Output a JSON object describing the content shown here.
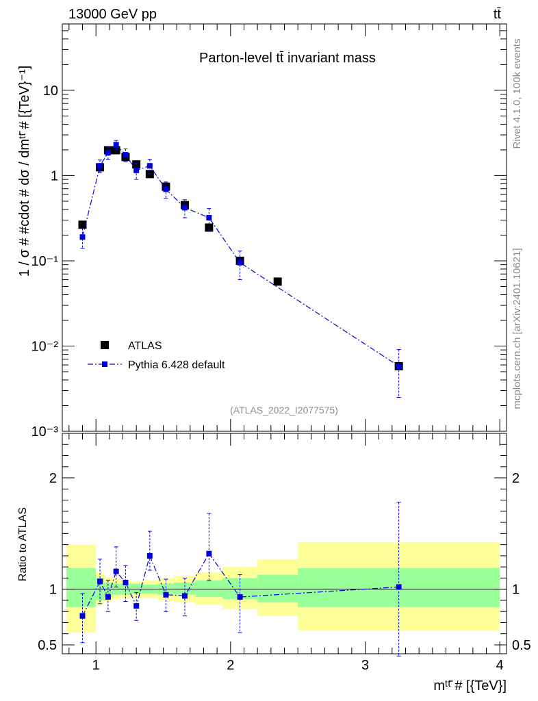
{
  "header": {
    "energy_label": "13000 GeV pp",
    "process_label": "tt̄",
    "side_label_top": "Rivet 4.1.0,  100k events",
    "side_label_bottom": "mcplots.cern.ch [arXiv:2401.10621]"
  },
  "colors": {
    "data": "#000000",
    "mc": "#0000dd",
    "band_inner": "#99ff99",
    "band_outer": "#ffff99",
    "reference_line": "#000000"
  },
  "chart_data": [
    {
      "type": "scatter",
      "title": "Parton-level tt̄ invariant mass",
      "ylabel": "1 / σ # #cdot # dσ / dmᵗᵗ̄ # [{TeV}⁻¹]",
      "xlabel": "",
      "yscale": "log",
      "ylim": [
        0.001,
        60
      ],
      "xlim": [
        0.75,
        4.05
      ],
      "yticks": [
        {
          "value": 0.001,
          "label": "10⁻³"
        },
        {
          "value": 0.01,
          "label": "10⁻²"
        },
        {
          "value": 0.1,
          "label": "10⁻¹"
        },
        {
          "value": 1,
          "label": "1"
        },
        {
          "value": 10,
          "label": "10"
        }
      ],
      "legend": {
        "position": "bottom-left",
        "entries": [
          "ATLAS",
          "Pythia 6.428 default"
        ]
      },
      "annotation": "(ATLAS_2022_I2077575)",
      "series": [
        {
          "name": "ATLAS",
          "marker": "square",
          "x": [
            0.9,
            1.03,
            1.09,
            1.15,
            1.22,
            1.3,
            1.4,
            1.52,
            1.66,
            1.84,
            2.07,
            2.35,
            3.25
          ],
          "y": [
            0.265,
            1.25,
            1.98,
            1.98,
            1.65,
            1.35,
            1.04,
            0.74,
            0.45,
            0.245,
            0.1,
            0.057,
            0.0058
          ]
        },
        {
          "name": "Pythia 6.428 default",
          "marker": "square-line",
          "x": [
            0.9,
            1.03,
            1.09,
            1.15,
            1.22,
            1.3,
            1.4,
            1.52,
            1.66,
            1.84,
            2.07,
            3.25
          ],
          "y": [
            0.19,
            1.3,
            1.85,
            2.3,
            1.75,
            1.15,
            1.3,
            0.69,
            0.42,
            0.32,
            0.095,
            0.0058
          ],
          "yerr_low": [
            0.05,
            0.22,
            0.3,
            0.28,
            0.3,
            0.25,
            0.25,
            0.15,
            0.1,
            0.09,
            0.035,
            0.0033
          ],
          "yerr_high": [
            0.05,
            0.22,
            0.3,
            0.28,
            0.3,
            0.25,
            0.25,
            0.15,
            0.1,
            0.09,
            0.035,
            0.0033
          ]
        }
      ]
    },
    {
      "type": "scatter",
      "title": "",
      "ylabel": "Ratio to ATLAS",
      "xlabel": "mᵗᵗ̄ # [{TeV}]",
      "ylim": [
        0.42,
        2.4
      ],
      "xlim": [
        0.75,
        4.05
      ],
      "yticks": [
        {
          "value": 0.5,
          "label": "0.5"
        },
        {
          "value": 1,
          "label": "1"
        },
        {
          "value": 2,
          "label": "2"
        }
      ],
      "xticks": [
        {
          "value": 1,
          "label": "1"
        },
        {
          "value": 2,
          "label": "2"
        },
        {
          "value": 3,
          "label": "3"
        },
        {
          "value": 4,
          "label": "4"
        }
      ],
      "bands": [
        {
          "x0": 0.78,
          "x1": 1.0,
          "inner": [
            0.84,
            1.19
          ],
          "outer": [
            0.61,
            1.4
          ]
        },
        {
          "x0": 1.0,
          "x1": 1.06,
          "inner": [
            0.9,
            1.1
          ],
          "outer": [
            0.86,
            1.15
          ]
        },
        {
          "x0": 1.06,
          "x1": 1.12,
          "inner": [
            0.93,
            1.06
          ],
          "outer": [
            0.89,
            1.11
          ]
        },
        {
          "x0": 1.12,
          "x1": 1.18,
          "inner": [
            0.95,
            1.05
          ],
          "outer": [
            0.91,
            1.09
          ]
        },
        {
          "x0": 1.18,
          "x1": 1.26,
          "inner": [
            0.95,
            1.05
          ],
          "outer": [
            0.92,
            1.08
          ]
        },
        {
          "x0": 1.26,
          "x1": 1.34,
          "inner": [
            0.96,
            1.05
          ],
          "outer": [
            0.92,
            1.07
          ]
        },
        {
          "x0": 1.34,
          "x1": 1.46,
          "inner": [
            0.96,
            1.04
          ],
          "outer": [
            0.92,
            1.08
          ]
        },
        {
          "x0": 1.46,
          "x1": 1.58,
          "inner": [
            0.95,
            1.05
          ],
          "outer": [
            0.9,
            1.1
          ]
        },
        {
          "x0": 1.58,
          "x1": 1.74,
          "inner": [
            0.95,
            1.06
          ],
          "outer": [
            0.88,
            1.12
          ]
        },
        {
          "x0": 1.74,
          "x1": 1.94,
          "inner": [
            0.93,
            1.08
          ],
          "outer": [
            0.86,
            1.15
          ]
        },
        {
          "x0": 1.94,
          "x1": 2.2,
          "inner": [
            0.91,
            1.1
          ],
          "outer": [
            0.82,
            1.2
          ]
        },
        {
          "x0": 2.2,
          "x1": 2.5,
          "inner": [
            0.88,
            1.13
          ],
          "outer": [
            0.76,
            1.27
          ]
        },
        {
          "x0": 2.5,
          "x1": 4.0,
          "inner": [
            0.84,
            1.19
          ],
          "outer": [
            0.63,
            1.42
          ]
        }
      ],
      "series": [
        {
          "name": "Pythia 6.428 default",
          "marker": "square-line",
          "x": [
            0.9,
            1.03,
            1.09,
            1.15,
            1.22,
            1.3,
            1.4,
            1.52,
            1.66,
            1.84,
            2.07,
            3.25
          ],
          "y": [
            0.76,
            1.07,
            0.93,
            1.16,
            1.06,
            0.85,
            1.3,
            0.95,
            0.94,
            1.32,
            0.93,
            1.02
          ],
          "yerr_low": [
            0.24,
            0.2,
            0.13,
            0.14,
            0.17,
            0.13,
            0.13,
            0.15,
            0.18,
            0.24,
            0.32,
            0.62
          ],
          "yerr_high": [
            0.2,
            0.2,
            0.15,
            0.22,
            0.15,
            0.12,
            0.22,
            0.14,
            0.16,
            0.36,
            0.2,
            0.76
          ]
        }
      ]
    }
  ]
}
